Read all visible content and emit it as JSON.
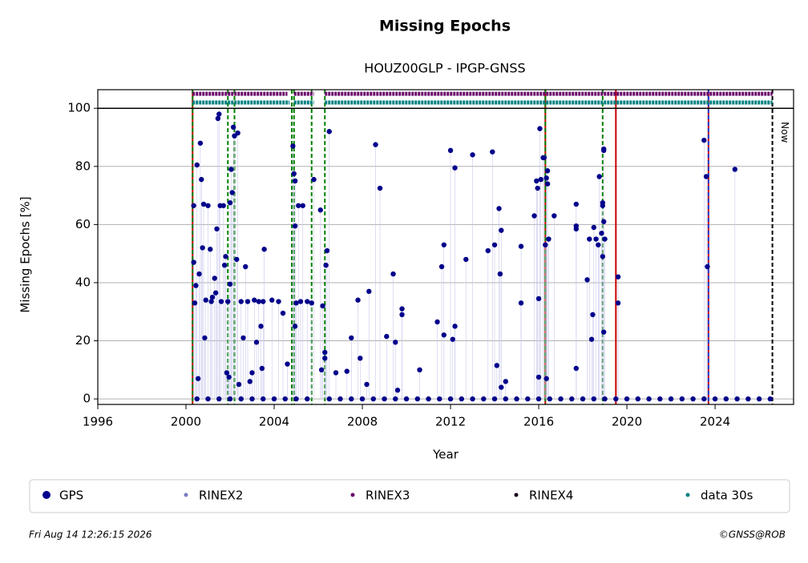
{
  "chart_data": {
    "type": "scatter",
    "title": "Missing Epochs",
    "subtitle": "HOUZ00GLP - IPGP-GNSS",
    "x_label": "Year",
    "y_label": "Missing Epochs [%]",
    "xlim": [
      1996,
      2027.56
    ],
    "ylim": [
      -1.9,
      106.4
    ],
    "xticks": [
      1996,
      2000,
      2004,
      2008,
      2012,
      2016,
      2020,
      2024
    ],
    "yticks": [
      0,
      20,
      40,
      60,
      80,
      100
    ],
    "grid": true,
    "ref_line": 100,
    "series": [
      {
        "name": "GPS",
        "color": "#00008b",
        "x": [
          2000.35,
          2000.35,
          2000.4,
          2000.45,
          2000.5,
          2000.55,
          2000.6,
          2000.65,
          2000.7,
          2000.75,
          2000.8,
          2000.85,
          2000.9,
          2001.0,
          2001.1,
          2001.15,
          2001.2,
          2001.3,
          2001.35,
          2001.4,
          2001.45,
          2001.5,
          2001.55,
          2001.6,
          2001.7,
          2001.75,
          2001.8,
          2001.85,
          2001.9,
          2001.95,
          2002.0,
          2002.0,
          2002.05,
          2002.1,
          2002.15,
          2002.2,
          2002.3,
          2002.35,
          2002.4,
          2002.5,
          2002.6,
          2002.7,
          2002.8,
          2002.9,
          2003.0,
          2003.1,
          2003.2,
          2003.3,
          2003.4,
          2003.45,
          2003.5,
          2003.55,
          2003.9,
          2004.2,
          2004.4,
          2004.6,
          2004.85,
          2004.9,
          2004.95,
          2004.95,
          2004.95,
          2005.0,
          2005.1,
          2005.2,
          2005.3,
          2005.5,
          2005.7,
          2005.8,
          2006.1,
          2006.15,
          2006.2,
          2006.3,
          2006.3,
          2006.35,
          2006.4,
          2006.5,
          2006.8,
          2007.3,
          2007.5,
          2007.8,
          2007.9,
          2008.2,
          2008.3,
          2008.6,
          2008.8,
          2009.1,
          2009.4,
          2009.5,
          2009.6,
          2009.8,
          2009.8,
          2010.6,
          2011.4,
          2011.6,
          2011.7,
          2011.7,
          2012.0,
          2012.1,
          2012.2,
          2012.2,
          2012.7,
          2013.0,
          2013.7,
          2013.9,
          2014.0,
          2014.1,
          2014.2,
          2014.25,
          2014.3,
          2014.3,
          2014.5,
          2015.2,
          2015.2,
          2015.8,
          2015.9,
          2015.95,
          2016.0,
          2016.0,
          2016.05,
          2016.1,
          2016.2,
          2016.25,
          2016.3,
          2016.35,
          2016.4,
          2016.4,
          2016.45,
          2016.35,
          2016.7,
          2017.7,
          2017.7,
          2017.7,
          2017.7,
          2018.2,
          2018.3,
          2018.4,
          2018.45,
          2018.5,
          2018.6,
          2018.7,
          2018.75,
          2018.85,
          2018.9,
          2018.9,
          2018.9,
          2018.95,
          2018.95,
          2018.95,
          2018.95,
          2019.0,
          2019.6,
          2019.6,
          2023.5,
          2023.6,
          2023.65,
          2024.9,
          2000.5,
          2001,
          2001.5,
          2002,
          2002.5,
          2003,
          2003.5,
          2004,
          2004.5,
          2005,
          2005.5,
          2006.5,
          2007,
          2007.5,
          2008,
          2008.5,
          2009,
          2009.5,
          2010,
          2010.5,
          2011,
          2011.5,
          2012,
          2012.5,
          2013,
          2013.5,
          2014,
          2014.5,
          2015,
          2015.5,
          2016,
          2016.5,
          2017,
          2017.5,
          2018,
          2018.5,
          2019,
          2019.5,
          2020,
          2020.5,
          2021,
          2021.5,
          2022,
          2022.5,
          2023,
          2023.5,
          2024,
          2024.5,
          2025,
          2025.5,
          2026,
          2026.5
        ],
        "values": [
          66.5,
          47,
          33,
          39,
          80.5,
          7,
          43,
          88,
          75.5,
          52,
          67,
          21,
          34,
          66.5,
          51.5,
          33.5,
          35,
          41.5,
          36.5,
          58.5,
          96.5,
          98,
          66.5,
          33.5,
          66.5,
          46,
          49,
          9,
          33.5,
          7.5,
          39.5,
          67.5,
          79,
          71,
          93.5,
          90.5,
          48,
          91.5,
          5,
          33.5,
          21,
          45.5,
          33.5,
          6,
          9,
          34,
          19.5,
          33.5,
          25,
          10.5,
          33.5,
          51.5,
          34,
          33.5,
          29.5,
          12,
          87,
          77.5,
          75,
          59.5,
          25,
          33,
          66.5,
          33.5,
          66.5,
          33.5,
          33,
          75.5,
          65,
          10,
          32,
          16,
          14,
          46,
          51,
          92,
          9,
          9.5,
          21,
          34,
          14,
          5,
          37,
          87.5,
          72.5,
          21.5,
          43,
          19.5,
          3,
          29,
          31,
          10,
          26.5,
          45.5,
          53,
          22,
          85.5,
          20.5,
          79.5,
          25,
          48,
          84,
          51,
          85,
          53,
          11.5,
          65.5,
          43,
          58,
          4,
          6,
          52.5,
          33,
          63,
          75,
          72.5,
          34.5,
          7.5,
          93,
          75.5,
          83,
          83,
          53,
          76,
          78.5,
          74,
          55,
          7,
          63,
          67,
          59.5,
          58.5,
          10.5,
          41,
          55,
          20.5,
          29,
          59,
          55,
          53,
          76.5,
          57,
          66.5,
          67.5,
          49,
          86,
          85.5,
          61,
          23,
          55,
          42,
          33,
          89,
          76.5,
          45.5,
          79,
          0,
          0,
          0,
          0,
          0,
          0,
          0,
          0,
          0,
          0,
          0,
          0,
          0,
          0,
          0,
          0,
          0,
          0,
          0,
          0,
          0,
          0,
          0,
          0,
          0,
          0,
          0,
          0,
          0,
          0,
          0,
          0,
          0,
          0,
          0,
          0,
          0,
          0,
          0,
          0,
          0,
          0,
          0,
          0,
          0,
          0,
          0,
          0,
          0,
          0,
          0,
          0
        ]
      },
      {
        "name": "RINEX2",
        "color": "#7b7bc0",
        "x": [],
        "values": []
      },
      {
        "name": "RINEX3",
        "color": "#6b0a6b",
        "level": 105,
        "spans": [
          [
            2000.3,
            2004.6
          ],
          [
            2004.9,
            2005.8
          ],
          [
            2006.3,
            2026.6
          ]
        ]
      },
      {
        "name": "RINEX4",
        "color": "#1a001a",
        "x": [],
        "values": []
      },
      {
        "name": "data 30s",
        "color": "#008080",
        "level": 102,
        "spans": [
          [
            2000.3,
            2004.7
          ],
          [
            2004.9,
            2005.8
          ],
          [
            2006.3,
            2026.6
          ]
        ]
      }
    ],
    "vlines": [
      {
        "x": 2000.3,
        "color": "#cc0000",
        "style": "solid"
      },
      {
        "x": 2000.3,
        "color": "#008000",
        "style": "dashed"
      },
      {
        "x": 2001.9,
        "color": "#008000",
        "style": "dashed"
      },
      {
        "x": 2002.2,
        "color": "#008000",
        "style": "dashed"
      },
      {
        "x": 2004.8,
        "color": "#008000",
        "style": "dashed"
      },
      {
        "x": 2004.9,
        "color": "#008000",
        "style": "dashed"
      },
      {
        "x": 2005.7,
        "color": "#008000",
        "style": "dashed"
      },
      {
        "x": 2006.3,
        "color": "#008000",
        "style": "dashed"
      },
      {
        "x": 2016.3,
        "color": "#cc0000",
        "style": "solid"
      },
      {
        "x": 2016.3,
        "color": "#008000",
        "style": "dashed"
      },
      {
        "x": 2018.9,
        "color": "#008000",
        "style": "dashed"
      },
      {
        "x": 2019.5,
        "color": "#cc0000",
        "style": "solid"
      },
      {
        "x": 2023.7,
        "color": "#cc0000",
        "style": "solid"
      },
      {
        "x": 2023.7,
        "color": "#1f3fd0",
        "style": "dashed"
      }
    ],
    "now_x": 2026.6,
    "now_label": "Now",
    "footer_left": "Fri Aug 14 12:26:15 2026",
    "footer_right": "©GNSS@ROB"
  }
}
